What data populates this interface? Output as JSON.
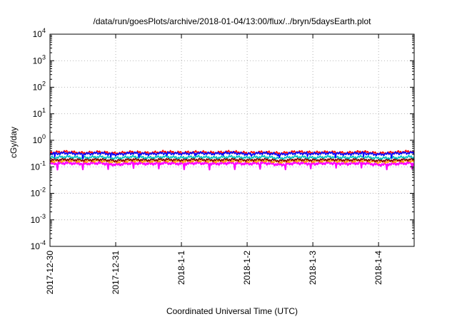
{
  "chart_data": {
    "type": "line",
    "title": "/data/run/goesPlots/archive/2018-01-04/13:00/flux/../bryn/5daysEarth.plot",
    "xlabel": "Coordinated Universal Time (UTC)",
    "ylabel": "cGy/day",
    "yscale": "log",
    "ylim": [
      0.0001,
      10000
    ],
    "xlim": [
      "2017-12-30",
      "2018-01-04 13:00"
    ],
    "grid": true,
    "y_ticks": [
      {
        "value": 0.0001,
        "base": "10",
        "exp": "-4"
      },
      {
        "value": 0.001,
        "base": "10",
        "exp": "-3"
      },
      {
        "value": 0.01,
        "base": "10",
        "exp": "-2"
      },
      {
        "value": 0.1,
        "base": "10",
        "exp": "-1"
      },
      {
        "value": 1,
        "base": "10",
        "exp": "0"
      },
      {
        "value": 10,
        "base": "10",
        "exp": "1"
      },
      {
        "value": 100,
        "base": "10",
        "exp": "2"
      },
      {
        "value": 1000,
        "base": "10",
        "exp": "3"
      },
      {
        "value": 10000,
        "base": "10",
        "exp": "4"
      }
    ],
    "x_ticks": [
      {
        "value": "2017-12-30",
        "label": "2017-12-30"
      },
      {
        "value": "2017-12-31",
        "label": "2017-12-31"
      },
      {
        "value": "2018-01-01",
        "label": "2018-1-1"
      },
      {
        "value": "2018-01-02",
        "label": "2018-1-2"
      },
      {
        "value": "2018-01-03",
        "label": "2018-1-3"
      },
      {
        "value": "2018-01-04",
        "label": "2018-1-4"
      }
    ],
    "x": [
      "2017-12-30 00:00",
      "2017-12-30 06:00",
      "2017-12-30 12:00",
      "2017-12-30 18:00",
      "2017-12-31 00:00",
      "2017-12-31 06:00",
      "2017-12-31 12:00",
      "2017-12-31 18:00",
      "2018-01-01 00:00",
      "2018-01-01 06:00",
      "2018-01-01 12:00",
      "2018-01-01 18:00",
      "2018-01-02 00:00",
      "2018-01-02 06:00",
      "2018-01-02 12:00",
      "2018-01-02 18:00",
      "2018-01-03 00:00",
      "2018-01-03 06:00",
      "2018-01-03 12:00",
      "2018-01-03 18:00",
      "2018-01-04 00:00",
      "2018-01-04 06:00",
      "2018-01-04 12:00",
      "2018-01-04 13:00"
    ],
    "series": [
      {
        "color": "#ff00ff",
        "values": [
          0.13,
          0.14,
          0.13,
          0.14,
          0.12,
          0.14,
          0.13,
          0.14,
          0.13,
          0.14,
          0.13,
          0.14,
          0.13,
          0.14,
          0.12,
          0.14,
          0.13,
          0.14,
          0.13,
          0.14,
          0.12,
          0.13,
          0.14,
          0.13
        ]
      },
      {
        "color": "#ffa500",
        "values": [
          0.16,
          0.17,
          0.16,
          0.17,
          0.15,
          0.17,
          0.16,
          0.17,
          0.16,
          0.17,
          0.16,
          0.17,
          0.16,
          0.17,
          0.15,
          0.17,
          0.16,
          0.17,
          0.16,
          0.17,
          0.15,
          0.16,
          0.17,
          0.16
        ]
      },
      {
        "color": "#800000",
        "values": [
          0.18,
          0.19,
          0.18,
          0.19,
          0.17,
          0.19,
          0.18,
          0.19,
          0.18,
          0.19,
          0.18,
          0.19,
          0.18,
          0.19,
          0.17,
          0.19,
          0.18,
          0.19,
          0.18,
          0.19,
          0.17,
          0.18,
          0.19,
          0.18
        ]
      },
      {
        "color": "#00c0c0",
        "values": [
          0.22,
          0.24,
          0.22,
          0.24,
          0.21,
          0.24,
          0.22,
          0.24,
          0.22,
          0.24,
          0.22,
          0.24,
          0.22,
          0.24,
          0.21,
          0.24,
          0.22,
          0.24,
          0.22,
          0.24,
          0.21,
          0.22,
          0.24,
          0.22
        ]
      },
      {
        "color": "#ff0000",
        "values": [
          0.34,
          0.37,
          0.33,
          0.36,
          0.32,
          0.36,
          0.33,
          0.37,
          0.34,
          0.36,
          0.34,
          0.37,
          0.33,
          0.36,
          0.32,
          0.37,
          0.34,
          0.36,
          0.33,
          0.37,
          0.32,
          0.35,
          0.38,
          0.34
        ]
      },
      {
        "color": "#0000ff",
        "values": [
          0.31,
          0.33,
          0.3,
          0.33,
          0.29,
          0.33,
          0.3,
          0.33,
          0.31,
          0.33,
          0.31,
          0.34,
          0.3,
          0.33,
          0.29,
          0.33,
          0.31,
          0.33,
          0.3,
          0.33,
          0.29,
          0.32,
          0.34,
          0.31
        ]
      }
    ]
  }
}
